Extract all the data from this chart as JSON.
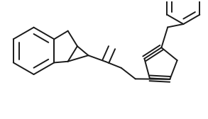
{
  "bg_color": "#ffffff",
  "line_color": "#1a1a1a",
  "line_width": 1.4,
  "fig_width": 2.93,
  "fig_height": 1.68,
  "dpi": 100
}
